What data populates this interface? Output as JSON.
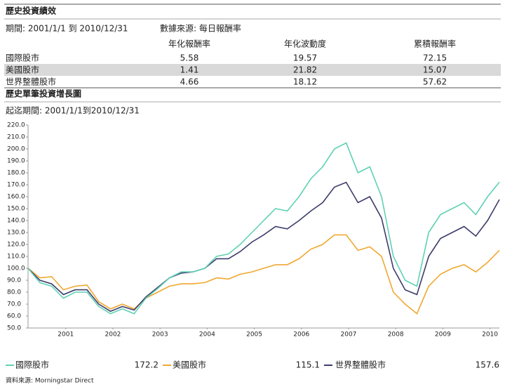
{
  "header": {
    "title": "歷史投資績效",
    "period": "期間: 2001/1/1 到 2010/12/31",
    "source": "數據來源: 每日報酬率"
  },
  "table": {
    "columns": [
      "年化報酬率",
      "年化波動度",
      "累積報酬率"
    ],
    "rows": [
      [
        "國際股市",
        5.58,
        19.57,
        72.15
      ],
      [
        "美國股市",
        1.41,
        21.82,
        15.07
      ],
      [
        "世界整體股市",
        4.66,
        18.12,
        57.62
      ]
    ]
  },
  "chart_data": {
    "type": "line",
    "title": "歷史單筆投資增長圖",
    "subtitle": "起迄期間: 2001/1/1到2010/12/31",
    "x": [
      2001,
      2001.25,
      2001.5,
      2001.75,
      2002,
      2002.25,
      2002.5,
      2002.75,
      2003,
      2003.25,
      2003.5,
      2003.75,
      2004,
      2004.25,
      2004.5,
      2004.75,
      2005,
      2005.25,
      2005.5,
      2005.75,
      2006,
      2006.25,
      2006.5,
      2006.75,
      2007,
      2007.25,
      2007.5,
      2007.75,
      2008,
      2008.25,
      2008.5,
      2008.75,
      2009,
      2009.25,
      2009.5,
      2009.75,
      2010,
      2010.25,
      2010.5,
      2010.75,
      2011
    ],
    "xlim": [
      2001,
      2011
    ],
    "xticks": [
      {
        "value": 2001.8,
        "label": "2001"
      },
      {
        "value": 2002.8,
        "label": "2002"
      },
      {
        "value": 2003.8,
        "label": "2003"
      },
      {
        "value": 2004.8,
        "label": "2004"
      },
      {
        "value": 2005.8,
        "label": "2005"
      },
      {
        "value": 2006.8,
        "label": "2006"
      },
      {
        "value": 2007.8,
        "label": "2007"
      },
      {
        "value": 2008.8,
        "label": "2008"
      },
      {
        "value": 2009.8,
        "label": "2009"
      },
      {
        "value": 2010.8,
        "label": "2010"
      }
    ],
    "ylim": [
      50,
      220
    ],
    "yticks": [
      {
        "value": 50,
        "label": "50.0"
      },
      {
        "value": 60,
        "label": "60.0"
      },
      {
        "value": 70,
        "label": "70.0"
      },
      {
        "value": 80,
        "label": "80.0"
      },
      {
        "value": 90,
        "label": "90.0"
      },
      {
        "value": 100,
        "label": "100.0"
      },
      {
        "value": 110,
        "label": "110.0"
      },
      {
        "value": 120,
        "label": "120.0"
      },
      {
        "value": 130,
        "label": "130.0"
      },
      {
        "value": 140,
        "label": "140.0"
      },
      {
        "value": 150,
        "label": "150.0"
      },
      {
        "value": 160,
        "label": "160.0"
      },
      {
        "value": 170,
        "label": "170.0"
      },
      {
        "value": 180,
        "label": "180.0"
      },
      {
        "value": 190,
        "label": "190.0"
      },
      {
        "value": 200,
        "label": "200.0"
      },
      {
        "value": 210,
        "label": "210.0"
      },
      {
        "value": 220,
        "label": "220.0"
      }
    ],
    "series": [
      {
        "name": "國際股市",
        "color": "#5fd1b4",
        "end_value": 172.2,
        "values": [
          100,
          88,
          85,
          75,
          80,
          80,
          68,
          62,
          66,
          62,
          75,
          83,
          92,
          97,
          97,
          100,
          110,
          112,
          120,
          130,
          140,
          150,
          148,
          160,
          175,
          185,
          200,
          205,
          180,
          185,
          160,
          110,
          90,
          85,
          130,
          145,
          150,
          155,
          145,
          160,
          172.2
        ]
      },
      {
        "name": "美國股市",
        "color": "#f0a830",
        "end_value": 115.1,
        "values": [
          100,
          92,
          93,
          82,
          85,
          86,
          72,
          66,
          70,
          66,
          75,
          80,
          85,
          87,
          87,
          88,
          92,
          91,
          95,
          97,
          100,
          103,
          103,
          108,
          116,
          120,
          128,
          128,
          115,
          118,
          110,
          80,
          70,
          62,
          85,
          95,
          100,
          103,
          97,
          105,
          115.1
        ]
      },
      {
        "name": "世界整體股市",
        "color": "#3c3c6c",
        "end_value": 157.6,
        "values": [
          100,
          90,
          87,
          78,
          82,
          82,
          70,
          64,
          68,
          65,
          76,
          84,
          92,
          96,
          97,
          100,
          108,
          108,
          114,
          122,
          128,
          135,
          133,
          140,
          148,
          155,
          168,
          172,
          155,
          160,
          142,
          100,
          82,
          78,
          110,
          125,
          130,
          135,
          127,
          140,
          157.6
        ]
      }
    ]
  },
  "footnote": "資料來源: Morningstar Direct"
}
